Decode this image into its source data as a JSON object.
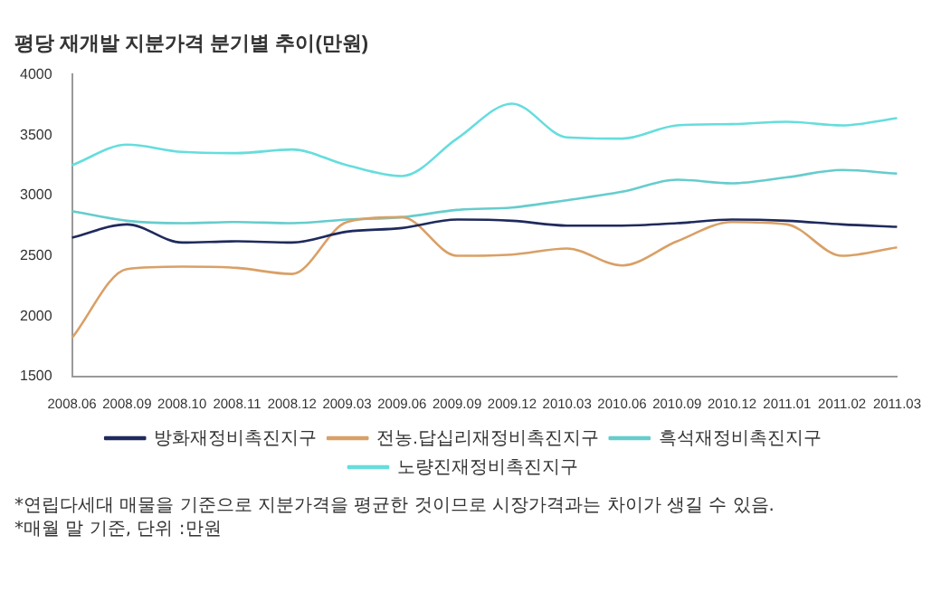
{
  "chart_data": {
    "type": "line",
    "title": "평당 재개발 지분가격 분기별 추이(만원)",
    "categories": [
      "2008.06",
      "2008.09",
      "2008.10",
      "2008.11",
      "2008.12",
      "2009.03",
      "2009.06",
      "2009.09",
      "2009.12",
      "2010.03",
      "2010.06",
      "2010.09",
      "2010.12",
      "2011.01",
      "2011.02",
      "2011.03"
    ],
    "series": [
      {
        "name": "방화재정비촉진지구",
        "color": "#1f2a5c",
        "values": [
          2650,
          2760,
          2610,
          2620,
          2610,
          2700,
          2730,
          2800,
          2790,
          2750,
          2750,
          2770,
          2800,
          2790,
          2760,
          2740
        ]
      },
      {
        "name": "전농.답십리재정비촉진지구",
        "color": "#d9a066",
        "values": [
          1820,
          2390,
          2410,
          2400,
          2350,
          2780,
          2820,
          2500,
          2510,
          2560,
          2420,
          2620,
          2780,
          2760,
          2500,
          2570
        ]
      },
      {
        "name": "흑석재정비촉진지구",
        "color": "#66cccc",
        "values": [
          2870,
          2790,
          2770,
          2780,
          2770,
          2800,
          2820,
          2880,
          2900,
          2960,
          3030,
          3130,
          3100,
          3150,
          3210,
          3180
        ]
      },
      {
        "name": "노량진재정비촉진지구",
        "color": "#66dddd",
        "values": [
          3250,
          3420,
          3360,
          3350,
          3380,
          3250,
          3160,
          3470,
          3760,
          3480,
          3470,
          3580,
          3590,
          3610,
          3580,
          3640
        ]
      }
    ],
    "ylim": [
      1500,
      4000
    ],
    "yticks": [
      1500,
      2000,
      2500,
      3000,
      3500,
      4000
    ],
    "grid": false,
    "legend": "bottom",
    "marker": "none",
    "line_style": "solid",
    "annotations": [
      "*연립다세대 매물을 기준으로 지분가격을 평균한 것이므로 시장가격과는 차이가 생길 수 있음.",
      "*매월 말 기준, 단위 :만원"
    ]
  }
}
